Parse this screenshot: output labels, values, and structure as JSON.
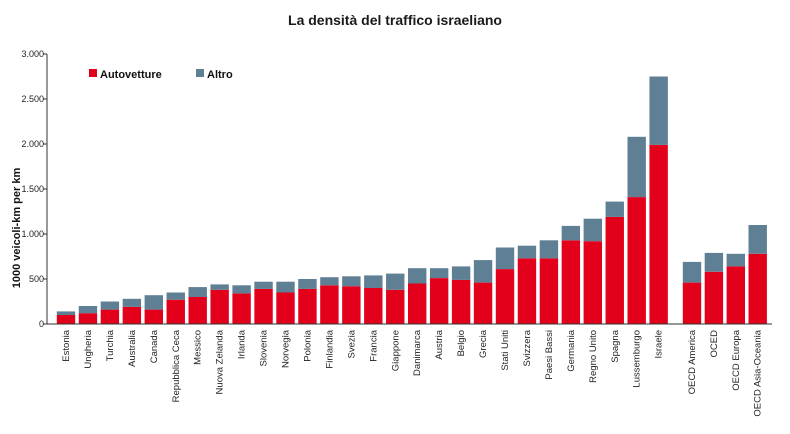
{
  "chart_data": {
    "type": "bar",
    "stacked": true,
    "title": "La densità del traffico israeliano",
    "ylabel": "1000 veicoli-km per km",
    "xlabel": "",
    "ylim": [
      0,
      3000
    ],
    "yticks": [
      0,
      500,
      1000,
      1500,
      2000,
      2500,
      3000
    ],
    "ytick_labels": [
      "0",
      "500",
      "1.000",
      "1.500",
      "2.000",
      "2.500",
      "3.000"
    ],
    "grid": false,
    "legend_position": "top-left",
    "colors": {
      "Autovetture": "#e2001a",
      "Altro": "#5f7f94"
    },
    "categories": [
      "Estonia",
      "Ungheria",
      "Turchia",
      "Australia",
      "Canada",
      "Repubblica Ceca",
      "Messico",
      "Nuova Zelanda",
      "Irlanda",
      "Slovenia",
      "Norvegia",
      "Polonia",
      "Finlandia",
      "Svezia",
      "Francia",
      "Giappone",
      "Danimarca",
      "Austria",
      "Belgio",
      "Grecia",
      "Stati Uniti",
      "Svizzera",
      "Paesi Bassi",
      "Germania",
      "Regno Unito",
      "Spagna",
      "Lussemburgo",
      "Israele",
      "OECD America",
      "OCED",
      "OECD Europa",
      "OECD Asia-Oceania"
    ],
    "gap_after_index": 27,
    "series": [
      {
        "name": "Autovetture",
        "values": [
          100,
          120,
          160,
          190,
          160,
          270,
          300,
          380,
          340,
          390,
          350,
          390,
          430,
          420,
          400,
          380,
          450,
          510,
          490,
          460,
          610,
          730,
          730,
          930,
          920,
          1190,
          1410,
          1990,
          460,
          580,
          640,
          780
        ]
      },
      {
        "name": "Altro",
        "values": [
          40,
          80,
          90,
          90,
          160,
          80,
          110,
          60,
          90,
          80,
          120,
          110,
          90,
          110,
          140,
          180,
          170,
          110,
          150,
          250,
          240,
          140,
          200,
          160,
          250,
          170,
          670,
          760,
          230,
          210,
          140,
          320
        ]
      }
    ]
  }
}
